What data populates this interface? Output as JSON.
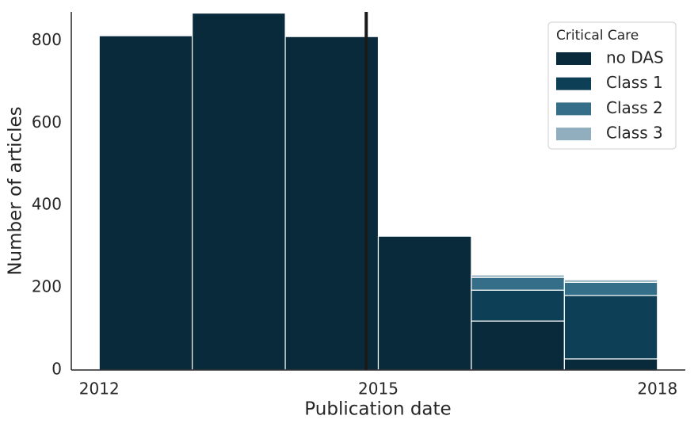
{
  "chart_data": {
    "type": "histogram",
    "xlabel": "Publication date",
    "ylabel": "Number of articles",
    "bins": [
      2012,
      2013,
      2014,
      2015,
      2016,
      2017,
      2018
    ],
    "series": [
      {
        "name": "no DAS",
        "color": "#082a3b",
        "values": [
          812,
          867,
          810,
          325,
          119,
          27
        ]
      },
      {
        "name": "Class 1",
        "color": "#0d3f57",
        "values": [
          0,
          0,
          0,
          0,
          75,
          154
        ]
      },
      {
        "name": "Class 2",
        "color": "#356e88",
        "values": [
          0,
          0,
          0,
          0,
          31,
          32
        ]
      },
      {
        "name": "Class 3",
        "color": "#90aebd",
        "values": [
          0,
          0,
          0,
          0,
          6,
          6
        ]
      }
    ],
    "stacked": true,
    "vline": 2014.87,
    "xlim": [
      2011.7,
      2018.3
    ],
    "xticks": [
      2012,
      2015,
      2018
    ],
    "ylim": [
      0,
      870
    ],
    "yticks": [
      0,
      200,
      400,
      600,
      800
    ],
    "grid": false,
    "legend_title": "Critical Care",
    "legend_position": "upper right"
  }
}
